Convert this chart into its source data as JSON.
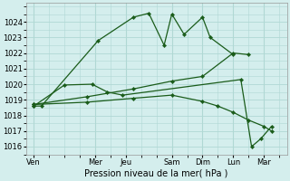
{
  "xlabel": "Pression niveau de la mer( hPa )",
  "ylim": [
    1015.5,
    1025.2
  ],
  "yticks": [
    1016,
    1017,
    1018,
    1019,
    1020,
    1021,
    1022,
    1023,
    1024
  ],
  "x_labels": [
    "Ven",
    "Mer",
    "Jeu",
    "Sam",
    "Dim",
    "Lun",
    "Mar"
  ],
  "x_positions": [
    0,
    4,
    6,
    9,
    11,
    13,
    15
  ],
  "xlim": [
    -0.5,
    16.5
  ],
  "bg_color": "#d4eeed",
  "grid_color": "#b0d8d4",
  "line_color": "#1a5c1a",
  "line1_x": [
    0,
    0.5,
    4.2,
    6.5,
    7.5,
    8.5,
    9.0,
    9.8,
    11.0,
    11.5,
    13.0
  ],
  "line1_y": [
    1018.6,
    1018.6,
    1022.8,
    1024.3,
    1024.55,
    1022.5,
    1024.5,
    1023.2,
    1024.3,
    1023.0,
    1021.9
  ],
  "line2_x": [
    0,
    2.0,
    3.8,
    4.8,
    5.8,
    13.5,
    14.2,
    14.8,
    15.5
  ],
  "line2_y": [
    1018.6,
    1019.95,
    1020.0,
    1019.5,
    1019.3,
    1020.3,
    1016.0,
    1016.5,
    1017.3
  ],
  "line3_x": [
    0,
    3.5,
    6.5,
    9.0,
    11.0,
    13.0,
    14.0
  ],
  "line3_y": [
    1018.7,
    1019.2,
    1019.7,
    1020.2,
    1020.5,
    1022.0,
    1021.9
  ],
  "line4_x": [
    0,
    3.5,
    6.5,
    9.0,
    11.0,
    12.0,
    13.0,
    14.0,
    15.0,
    15.5
  ],
  "line4_y": [
    1018.7,
    1018.85,
    1019.1,
    1019.3,
    1018.9,
    1018.6,
    1018.2,
    1017.7,
    1017.3,
    1017.0
  ]
}
